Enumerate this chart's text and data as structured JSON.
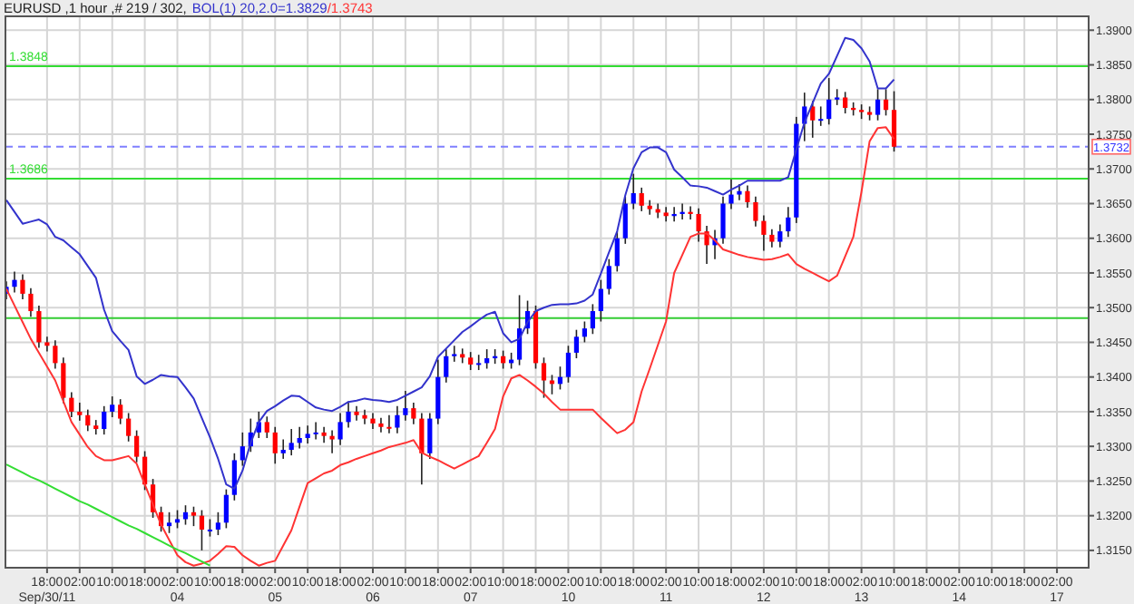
{
  "chart_data": {
    "type": "candlestick",
    "title": "EURUSD ,1 hour ,# 219 / 302,",
    "legend": "top left",
    "grid": true,
    "categories": [
      null,
      null,
      null,
      null,
      null,
      "18:00\nSep/30/11",
      null,
      null,
      null,
      "02:00",
      null,
      null,
      null,
      "10:00",
      null,
      null,
      null,
      "18:00",
      null,
      null,
      null,
      "02:00\n04",
      null,
      null,
      null,
      "10:00",
      null,
      null,
      null,
      "18:00",
      null,
      null,
      null,
      "02:00\n05",
      null,
      null,
      null,
      "10:00",
      null,
      null,
      null,
      "18:00",
      null,
      null,
      null,
      "02:00\n06",
      null,
      null,
      null,
      "10:00",
      null,
      null,
      null,
      "18:00",
      null,
      null,
      null,
      "02:00\n07",
      null,
      null,
      null,
      "10:00",
      null,
      null,
      null,
      "18:00",
      null,
      null,
      null,
      "02:00\n10",
      null,
      null,
      null,
      "10:00",
      null,
      null,
      null,
      "18:00",
      null,
      null,
      null,
      "02:00\n11",
      null,
      null,
      null,
      "10:00",
      null,
      null,
      null,
      "18:00",
      null,
      null,
      null,
      "02:00\n12",
      null,
      null,
      null,
      "10:00",
      null,
      null,
      null,
      "18:00",
      null,
      null,
      null,
      "02:00\n13",
      null,
      null,
      null,
      "10:00",
      null,
      null,
      null,
      "18:00",
      null,
      null,
      null,
      "02:00\n14",
      null,
      null,
      null,
      "10:00",
      null,
      null,
      null,
      "18:00",
      null,
      null,
      null,
      "02:00\n17",
      null,
      null,
      null
    ],
    "ylim": [
      1.3125,
      1.392
    ],
    "yticks": [
      {
        "value": 1.315,
        "label": "1.3150"
      },
      {
        "value": 1.32,
        "label": "1.3200"
      },
      {
        "value": 1.325,
        "label": "1.3250"
      },
      {
        "value": 1.33,
        "label": "1.3300"
      },
      {
        "value": 1.335,
        "label": "1.3350"
      },
      {
        "value": 1.34,
        "label": "1.3400"
      },
      {
        "value": 1.345,
        "label": "1.3450"
      },
      {
        "value": 1.35,
        "label": "1.3500"
      },
      {
        "value": 1.355,
        "label": "1.3550"
      },
      {
        "value": 1.36,
        "label": "1.3600"
      },
      {
        "value": 1.365,
        "label": "1.3650"
      },
      {
        "value": 1.37,
        "label": "1.3700"
      },
      {
        "value": 1.375,
        "label": "1.3750"
      },
      {
        "value": 1.38,
        "label": "1.3800"
      },
      {
        "value": 1.385,
        "label": "1.3850"
      },
      {
        "value": 1.39,
        "label": "1.3900"
      }
    ],
    "ref_lines": [
      {
        "axis": "y",
        "value": 1.3848,
        "label": "1.3848",
        "color": "#33dd33"
      },
      {
        "axis": "y",
        "value": 1.3686,
        "label": "1.3686",
        "color": "#33dd33"
      },
      {
        "axis": "y",
        "value": 1.3485,
        "color": "#33cc33"
      },
      {
        "axis": "y",
        "value": 1.3732,
        "label": "1.3732",
        "color": "#8080ff",
        "line_style": "dashed"
      }
    ],
    "series": [
      {
        "ohlc": [
          [
            1.352,
            1.3538,
            1.3512,
            1.353
          ],
          [
            1.353,
            1.3552,
            1.3522,
            1.354
          ],
          [
            1.354,
            1.3548,
            1.3512,
            1.352
          ],
          [
            1.352,
            1.3528,
            1.3487,
            1.3495
          ],
          [
            1.3495,
            1.3503,
            1.3442,
            1.345
          ],
          [
            1.345,
            1.3458,
            1.3437,
            1.3445
          ],
          [
            1.3445,
            1.3453,
            1.3412,
            1.342
          ],
          [
            1.342,
            1.3428,
            1.3362,
            1.337
          ],
          [
            1.337,
            1.3378,
            1.3342,
            1.335
          ],
          [
            1.335,
            1.3363,
            1.3337,
            1.3345
          ],
          [
            1.3345,
            1.3353,
            1.3322,
            1.333
          ],
          [
            1.333,
            1.3338,
            1.3317,
            1.3325
          ],
          [
            1.3325,
            1.3358,
            1.3317,
            1.335
          ],
          [
            1.335,
            1.3372,
            1.3342,
            1.336
          ],
          [
            1.336,
            1.3368,
            1.3332,
            1.334
          ],
          [
            1.334,
            1.3348,
            1.3307,
            1.3315
          ],
          [
            1.3315,
            1.3323,
            1.3277,
            1.3285
          ],
          [
            1.3285,
            1.3293,
            1.3237,
            1.3245
          ],
          [
            1.3245,
            1.3253,
            1.3197,
            1.3205
          ],
          [
            1.3205,
            1.3213,
            1.3177,
            1.3185
          ],
          [
            1.3185,
            1.3205,
            1.3175,
            1.319
          ],
          [
            1.319,
            1.3208,
            1.3182,
            1.3195
          ],
          [
            1.3195,
            1.3215,
            1.3187,
            1.3205
          ],
          [
            1.3205,
            1.3213,
            1.3185,
            1.32
          ],
          [
            1.32,
            1.3208,
            1.315,
            1.318
          ],
          [
            1.318,
            1.3195,
            1.317,
            1.318
          ],
          [
            1.318,
            1.3205,
            1.3172,
            1.319
          ],
          [
            1.319,
            1.3238,
            1.3182,
            1.323
          ],
          [
            1.323,
            1.329,
            1.3222,
            1.328
          ],
          [
            1.328,
            1.332,
            1.3272,
            1.33
          ],
          [
            1.33,
            1.334,
            1.3292,
            1.332
          ],
          [
            1.332,
            1.335,
            1.3312,
            1.3335
          ],
          [
            1.3335,
            1.3343,
            1.3312,
            1.332
          ],
          [
            1.332,
            1.3328,
            1.3275,
            1.329
          ],
          [
            1.329,
            1.331,
            1.3282,
            1.3295
          ],
          [
            1.3295,
            1.3325,
            1.3287,
            1.3305
          ],
          [
            1.3305,
            1.3328,
            1.3297,
            1.3312
          ],
          [
            1.3312,
            1.333,
            1.3304,
            1.3318
          ],
          [
            1.3318,
            1.3335,
            1.331,
            1.332
          ],
          [
            1.332,
            1.3328,
            1.3305,
            1.3315
          ],
          [
            1.3315,
            1.3323,
            1.329,
            1.331
          ],
          [
            1.331,
            1.3348,
            1.3302,
            1.3335
          ],
          [
            1.3335,
            1.3365,
            1.3327,
            1.335
          ],
          [
            1.335,
            1.3358,
            1.3337,
            1.3345
          ],
          [
            1.3345,
            1.3353,
            1.3332,
            1.334
          ],
          [
            1.334,
            1.3348,
            1.3325,
            1.3333
          ],
          [
            1.3333,
            1.3341,
            1.332,
            1.3328
          ],
          [
            1.3328,
            1.3345,
            1.3319,
            1.3327
          ],
          [
            1.3327,
            1.3358,
            1.3319,
            1.3345
          ],
          [
            1.3345,
            1.338,
            1.3337,
            1.3355
          ],
          [
            1.3355,
            1.3363,
            1.3332,
            1.334
          ],
          [
            1.334,
            1.3348,
            1.3245,
            1.329
          ],
          [
            1.329,
            1.3348,
            1.3282,
            1.334
          ],
          [
            1.334,
            1.3425,
            1.3332,
            1.34
          ],
          [
            1.34,
            1.344,
            1.3392,
            1.343
          ],
          [
            1.343,
            1.3445,
            1.3422,
            1.3433
          ],
          [
            1.3433,
            1.3441,
            1.342,
            1.3428
          ],
          [
            1.3428,
            1.3436,
            1.341,
            1.3418
          ],
          [
            1.3418,
            1.3432,
            1.341,
            1.342
          ],
          [
            1.342,
            1.344,
            1.3412,
            1.3427
          ],
          [
            1.3427,
            1.344,
            1.3419,
            1.343
          ],
          [
            1.343,
            1.3438,
            1.3412,
            1.342
          ],
          [
            1.342,
            1.3435,
            1.3412,
            1.3425
          ],
          [
            1.3425,
            1.3518,
            1.3417,
            1.347
          ],
          [
            1.347,
            1.351,
            1.3462,
            1.3495
          ],
          [
            1.3495,
            1.3503,
            1.3412,
            1.342
          ],
          [
            1.342,
            1.3428,
            1.337,
            1.3395
          ],
          [
            1.3395,
            1.3403,
            1.3375,
            1.339
          ],
          [
            1.339,
            1.3415,
            1.3382,
            1.34
          ],
          [
            1.34,
            1.3445,
            1.3392,
            1.3435
          ],
          [
            1.3435,
            1.3468,
            1.3427,
            1.3458
          ],
          [
            1.3458,
            1.348,
            1.345,
            1.347
          ],
          [
            1.347,
            1.3505,
            1.3462,
            1.3495
          ],
          [
            1.3495,
            1.354,
            1.348,
            1.3527
          ],
          [
            1.3527,
            1.357,
            1.3519,
            1.356
          ],
          [
            1.356,
            1.361,
            1.3552,
            1.36
          ],
          [
            1.36,
            1.366,
            1.3592,
            1.365
          ],
          [
            1.365,
            1.3693,
            1.3642,
            1.3665
          ],
          [
            1.3665,
            1.3673,
            1.3639,
            1.3647
          ],
          [
            1.3647,
            1.3655,
            1.3634,
            1.3642
          ],
          [
            1.3642,
            1.365,
            1.3629,
            1.3637
          ],
          [
            1.3637,
            1.3645,
            1.3624,
            1.3632
          ],
          [
            1.3632,
            1.3645,
            1.3624,
            1.3635
          ],
          [
            1.3635,
            1.365,
            1.3627,
            1.3638
          ],
          [
            1.3638,
            1.3646,
            1.3627,
            1.3635
          ],
          [
            1.3635,
            1.3643,
            1.3595,
            1.361
          ],
          [
            1.361,
            1.3618,
            1.3563,
            1.359
          ],
          [
            1.359,
            1.3612,
            1.357,
            1.36
          ],
          [
            1.36,
            1.366,
            1.3592,
            1.365
          ],
          [
            1.365,
            1.3685,
            1.3642,
            1.3663
          ],
          [
            1.3663,
            1.3678,
            1.3655,
            1.3668
          ],
          [
            1.3668,
            1.3676,
            1.3644,
            1.3652
          ],
          [
            1.3652,
            1.366,
            1.3617,
            1.3625
          ],
          [
            1.3625,
            1.3633,
            1.3582,
            1.3605
          ],
          [
            1.3605,
            1.3613,
            1.3587,
            1.3595
          ],
          [
            1.3595,
            1.362,
            1.3587,
            1.361
          ],
          [
            1.361,
            1.3645,
            1.3602,
            1.363
          ],
          [
            1.363,
            1.3775,
            1.3622,
            1.3765
          ],
          [
            1.3765,
            1.381,
            1.374,
            1.379
          ],
          [
            1.379,
            1.3798,
            1.3745,
            1.377
          ],
          [
            1.377,
            1.379,
            1.3762,
            1.3772
          ],
          [
            1.3772,
            1.3831,
            1.3764,
            1.38
          ],
          [
            1.38,
            1.3815,
            1.3792,
            1.3803
          ],
          [
            1.3803,
            1.3811,
            1.378,
            1.3788
          ],
          [
            1.3788,
            1.3796,
            1.3777,
            1.3785
          ],
          [
            1.3785,
            1.3793,
            1.3772,
            1.3782
          ],
          [
            1.3782,
            1.379,
            1.377,
            1.3778
          ],
          [
            1.3778,
            1.3815,
            1.377,
            1.38
          ],
          [
            1.38,
            1.3815,
            1.3777,
            1.3785
          ],
          [
            1.3785,
            1.3812,
            1.3725,
            1.3732
          ],
          null,
          null,
          null,
          null,
          null,
          null,
          null,
          null,
          null,
          null,
          null,
          null,
          null,
          null,
          null,
          null,
          null,
          null,
          null,
          null,
          null,
          null,
          null
        ],
        "colors": [
          "#0000ff",
          "#0000ff",
          "#ff0000",
          "#ff0000",
          "#ff0000",
          "#ff0000",
          "#ff0000",
          "#ff0000",
          "#ff0000",
          "#ff0000",
          "#ff0000",
          "#ff0000",
          "#0000ff",
          "#0000ff",
          "#ff0000",
          "#ff0000",
          "#ff0000",
          "#ff0000",
          "#ff0000",
          "#ff0000",
          "#0000ff",
          "#0000ff",
          "#0000ff",
          "#ff0000",
          "#ff0000",
          "#0000ff",
          "#0000ff",
          "#0000ff",
          "#0000ff",
          "#0000ff",
          "#0000ff",
          "#0000ff",
          "#ff0000",
          "#ff0000",
          "#0000ff",
          "#0000ff",
          "#0000ff",
          "#0000ff",
          "#0000ff",
          "#ff0000",
          "#ff0000",
          "#0000ff",
          "#0000ff",
          "#ff0000",
          "#ff0000",
          "#ff0000",
          "#ff0000",
          "#ff0000",
          "#0000ff",
          "#0000ff",
          "#ff0000",
          "#ff0000",
          "#0000ff",
          "#0000ff",
          "#0000ff",
          "#0000ff",
          "#ff0000",
          "#ff0000",
          "#0000ff",
          "#0000ff",
          "#0000ff",
          "#ff0000",
          "#0000ff",
          "#0000ff",
          "#0000ff",
          "#ff0000",
          "#ff0000",
          "#ff0000",
          "#0000ff",
          "#0000ff",
          "#0000ff",
          "#0000ff",
          "#0000ff",
          "#0000ff",
          "#0000ff",
          "#0000ff",
          "#0000ff",
          "#0000ff",
          "#ff0000",
          "#ff0000",
          "#ff0000",
          "#ff0000",
          "#0000ff",
          "#0000ff",
          "#ff0000",
          "#ff0000",
          "#ff0000",
          "#0000ff",
          "#0000ff",
          "#0000ff",
          "#0000ff",
          "#ff0000",
          "#ff0000",
          "#ff0000",
          "#ff0000",
          "#0000ff",
          "#0000ff",
          "#0000ff",
          "#0000ff",
          "#ff0000",
          "#0000ff",
          "#0000ff",
          "#0000ff",
          "#ff0000",
          "#ff0000",
          "#ff0000",
          "#ff0000",
          "#0000ff",
          "#ff0000",
          "#ff0000",
          null,
          null,
          null,
          null,
          null,
          null,
          null,
          null,
          null,
          null,
          null,
          null,
          null,
          null,
          null,
          null,
          null,
          null,
          null,
          null,
          null,
          null,
          null
        ]
      },
      {
        "type": "line",
        "name": "BOL(1) 20,2.0=1.3829",
        "color": "#3333cc",
        "values": [
          1.3655,
          1.3638,
          1.3621,
          1.3624,
          1.3627,
          1.362,
          1.3602,
          1.3597,
          1.3587,
          1.3577,
          1.356,
          1.3543,
          1.3497,
          1.3466,
          1.3452,
          1.3439,
          1.3401,
          1.339,
          1.3396,
          1.3403,
          1.3401,
          1.34,
          1.3385,
          1.3369,
          1.3341,
          1.3313,
          1.3282,
          1.3245,
          1.3239,
          1.3265,
          1.3305,
          1.3335,
          1.3351,
          1.3358,
          1.3366,
          1.3373,
          1.3372,
          1.3364,
          1.3356,
          1.3353,
          1.3351,
          1.3357,
          1.3364,
          1.3366,
          1.3369,
          1.3367,
          1.3366,
          1.3364,
          1.3367,
          1.3373,
          1.3379,
          1.3385,
          1.3401,
          1.3429,
          1.3441,
          1.3453,
          1.3465,
          1.3473,
          1.3482,
          1.349,
          1.3494,
          1.3463,
          1.345,
          1.3455,
          1.3479,
          1.3495,
          1.35,
          1.3504,
          1.3505,
          1.3505,
          1.3506,
          1.351,
          1.3519,
          1.3549,
          1.358,
          1.361,
          1.3662,
          1.3701,
          1.3724,
          1.3731,
          1.3731,
          1.3724,
          1.3699,
          1.3688,
          1.3676,
          1.3675,
          1.3673,
          1.3668,
          1.3663,
          1.367,
          1.3676,
          1.3683,
          1.3683,
          1.3683,
          1.3683,
          1.3683,
          1.3688,
          1.3728,
          1.3767,
          1.3795,
          1.3823,
          1.3837,
          1.3863,
          1.3889,
          1.3886,
          1.3874,
          1.3855,
          1.3816,
          1.3816,
          1.3829,
          null,
          null,
          null,
          null,
          null,
          null,
          null,
          null,
          null,
          null,
          null,
          null,
          null,
          null,
          null,
          null,
          null,
          null,
          null,
          null,
          null,
          null,
          null
        ]
      },
      {
        "type": "line",
        "name": "/1.3743",
        "color": "#ff3333",
        "values": [
          1.3527,
          1.3503,
          1.3479,
          1.3455,
          1.3435,
          1.3415,
          1.3395,
          1.3365,
          1.3335,
          1.3317,
          1.3299,
          1.3286,
          1.328,
          1.328,
          1.3283,
          1.3286,
          1.3275,
          1.3245,
          1.3216,
          1.3187,
          1.3165,
          1.3143,
          1.3133,
          1.3128,
          1.3131,
          1.3135,
          1.3145,
          1.3156,
          1.3155,
          1.3143,
          1.3135,
          1.3128,
          1.3132,
          1.3135,
          1.3157,
          1.3179,
          1.3213,
          1.3247,
          1.3254,
          1.3261,
          1.3265,
          1.3273,
          1.3277,
          1.3282,
          1.3286,
          1.329,
          1.3294,
          1.3299,
          1.3302,
          1.3305,
          1.3309,
          1.3291,
          1.3285,
          1.328,
          1.3274,
          1.3268,
          1.3274,
          1.328,
          1.3286,
          1.3305,
          1.3325,
          1.3372,
          1.3398,
          1.3403,
          1.3395,
          1.3386,
          1.3376,
          1.3364,
          1.3353,
          1.3353,
          1.3353,
          1.3353,
          1.3353,
          1.3341,
          1.333,
          1.3319,
          1.3324,
          1.3335,
          1.3379,
          1.3412,
          1.3446,
          1.348,
          1.355,
          1.3576,
          1.3602,
          1.3607,
          1.3607,
          1.3597,
          1.3584,
          1.358,
          1.3576,
          1.3573,
          1.3571,
          1.3569,
          1.357,
          1.3573,
          1.3577,
          1.3563,
          1.3556,
          1.355,
          1.3544,
          1.3538,
          1.3546,
          1.3574,
          1.3602,
          1.3667,
          1.374,
          1.3759,
          1.376,
          1.3743,
          null,
          null,
          null,
          null,
          null,
          null,
          null,
          null,
          null,
          null,
          null,
          null,
          null,
          null,
          null,
          null,
          null,
          null,
          null,
          null,
          null,
          null,
          null
        ]
      },
      {
        "type": "line",
        "color": "#33dd33",
        "values": [
          1.3274,
          1.3268,
          1.3262,
          1.3256,
          1.3251,
          1.3245,
          1.3239,
          1.3233,
          1.3227,
          1.3221,
          1.3216,
          1.321,
          1.3204,
          1.3198,
          1.3192,
          1.3186,
          1.3181,
          1.3175,
          1.3169,
          1.3163,
          1.3157,
          1.3151,
          1.3146,
          1.314,
          1.3134,
          1.3128,
          null,
          null,
          null,
          null,
          null,
          null,
          null,
          null,
          null,
          null,
          null,
          null,
          null,
          null,
          null,
          null,
          null,
          null,
          null,
          null,
          null,
          null,
          null,
          null,
          null,
          null,
          null,
          null,
          null,
          null,
          null,
          null,
          null,
          null,
          null,
          null,
          null,
          null,
          null,
          null,
          null,
          null,
          null,
          null,
          null,
          null,
          null,
          null,
          null,
          null,
          null,
          null,
          null,
          null,
          null,
          null,
          null,
          null,
          null,
          null,
          null,
          null,
          null,
          null,
          null,
          null,
          null,
          null,
          null,
          null,
          null,
          null,
          null,
          null,
          null,
          null,
          null,
          null,
          null,
          null,
          null,
          null,
          null,
          null,
          null,
          null,
          null,
          null,
          null,
          null,
          null,
          null,
          null,
          null,
          null,
          null,
          null,
          null,
          null,
          null,
          null,
          null,
          null,
          null,
          null,
          null,
          null
        ]
      }
    ]
  }
}
